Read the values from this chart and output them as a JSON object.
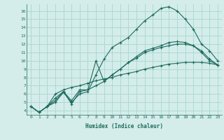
{
  "xlabel": "Humidex (Indice chaleur)",
  "bg_color": "#d4edea",
  "grid_color": "#a8d5d0",
  "line_color": "#1e6b5e",
  "xlim": [
    -0.5,
    23.5
  ],
  "ylim": [
    3.5,
    16.8
  ],
  "xticks": [
    0,
    1,
    2,
    3,
    4,
    5,
    6,
    7,
    8,
    9,
    10,
    11,
    12,
    13,
    14,
    15,
    16,
    17,
    18,
    19,
    20,
    21,
    22,
    23
  ],
  "yticks": [
    4,
    5,
    6,
    7,
    8,
    9,
    10,
    11,
    12,
    13,
    14,
    15,
    16
  ],
  "series": [
    {
      "x": [
        0,
        1,
        2,
        3,
        4,
        5,
        6,
        7,
        8,
        9,
        10,
        11,
        12,
        13,
        14,
        15,
        16,
        17,
        18,
        19,
        20,
        21,
        22,
        23
      ],
      "y": [
        4.5,
        3.8,
        4.5,
        5.0,
        6.2,
        5.0,
        6.0,
        6.3,
        8.3,
        10.2,
        11.6,
        12.2,
        12.8,
        13.8,
        14.8,
        15.5,
        16.3,
        16.5,
        16.0,
        15.0,
        13.8,
        12.0,
        11.2,
        10.0
      ]
    },
    {
      "x": [
        0,
        1,
        2,
        3,
        4,
        5,
        6,
        7,
        8,
        9,
        10,
        11,
        12,
        13,
        14,
        15,
        16,
        17,
        18,
        19,
        20,
        21,
        22,
        23
      ],
      "y": [
        4.5,
        3.8,
        4.5,
        5.2,
        6.3,
        5.2,
        6.5,
        6.5,
        7.0,
        7.5,
        8.3,
        9.0,
        9.8,
        10.5,
        11.2,
        11.5,
        11.8,
        12.2,
        12.3,
        12.2,
        11.8,
        11.2,
        10.2,
        9.5
      ]
    },
    {
      "x": [
        0,
        1,
        2,
        3,
        4,
        5,
        6,
        7,
        8,
        9,
        10,
        11,
        12,
        13,
        14,
        15,
        16,
        17,
        18,
        19,
        20,
        21,
        22,
        23
      ],
      "y": [
        4.5,
        3.8,
        4.5,
        6.0,
        6.5,
        6.8,
        7.0,
        7.3,
        7.6,
        7.8,
        8.0,
        8.3,
        8.5,
        8.7,
        9.0,
        9.2,
        9.4,
        9.6,
        9.7,
        9.8,
        9.8,
        9.8,
        9.7,
        9.5
      ]
    },
    {
      "x": [
        0,
        1,
        2,
        3,
        4,
        5,
        6,
        7,
        8,
        9,
        10,
        11,
        12,
        13,
        14,
        15,
        16,
        17,
        18,
        19,
        20,
        21,
        22,
        23
      ],
      "y": [
        4.5,
        3.8,
        4.5,
        5.5,
        6.3,
        4.8,
        6.3,
        6.5,
        10.0,
        7.5,
        8.3,
        9.0,
        9.8,
        10.3,
        11.0,
        11.3,
        11.6,
        11.8,
        12.0,
        12.0,
        11.8,
        11.0,
        10.0,
        9.5
      ]
    }
  ]
}
